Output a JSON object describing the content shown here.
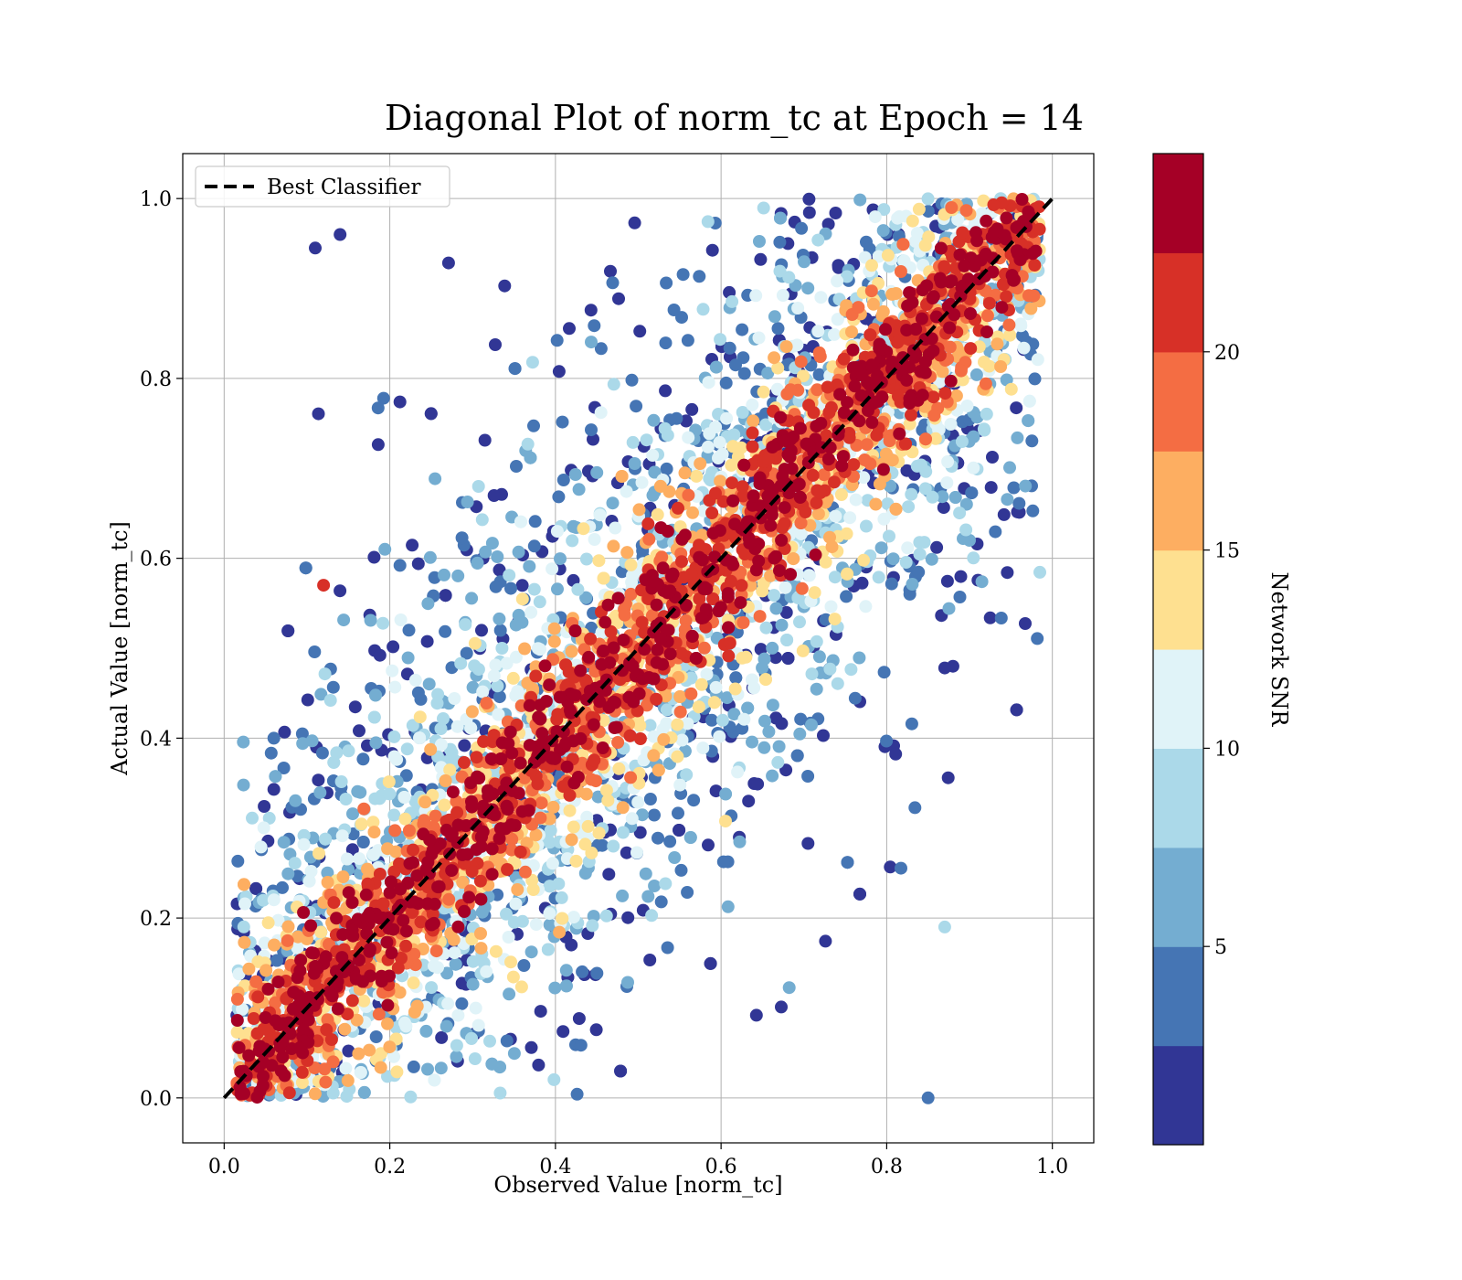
{
  "chart_data": {
    "type": "scatter",
    "title": "Diagonal Plot of norm_tc at Epoch = 14",
    "xlabel": "Observed Value [norm_tc]",
    "ylabel": "Actual Value [norm_tc]",
    "xlim": [
      -0.05,
      1.05
    ],
    "ylim": [
      -0.05,
      1.05
    ],
    "x_ticks": [
      "0.0",
      "0.2",
      "0.4",
      "0.6",
      "0.8",
      "1.0"
    ],
    "y_ticks": [
      "0.0",
      "0.2",
      "0.4",
      "0.6",
      "0.8",
      "1.0"
    ],
    "grid": true,
    "legend": {
      "placement": "top-left",
      "entries": [
        "Best Classifier"
      ]
    },
    "reference_line": {
      "name": "Best Classifier",
      "x": [
        0,
        1
      ],
      "y": [
        0,
        1
      ],
      "style": "dashed",
      "color": "#000000"
    },
    "colorbar": {
      "label": "Network SNR",
      "range": [
        0,
        25
      ],
      "ticks": [
        "5",
        "10",
        "15",
        "20"
      ],
      "tick_values": [
        5,
        10,
        15,
        20
      ],
      "colors": [
        "#313695",
        "#4575b4",
        "#74add1",
        "#abd9e9",
        "#e0f3f8",
        "#fee090",
        "#fdae61",
        "#f46d43",
        "#d73027",
        "#a50026"
      ]
    },
    "series_summary": {
      "high_snr_band_half_width": 0.07,
      "low_snr_spread_max": 0.45,
      "description_points": [
        {
          "x": 0.11,
          "y": 0.945,
          "snr": 1
        },
        {
          "x": 0.14,
          "y": 0.96,
          "snr": 1
        },
        {
          "x": 0.06,
          "y": 0.4,
          "snr": 3
        },
        {
          "x": 0.12,
          "y": 0.57,
          "snr": 21
        },
        {
          "x": 0.85,
          "y": 0.0,
          "snr": 3
        },
        {
          "x": 0.88,
          "y": 0.48,
          "snr": 1
        },
        {
          "x": 0.9,
          "y": 0.62,
          "snr": 5
        },
        {
          "x": 0.87,
          "y": 0.19,
          "snr": 8
        }
      ]
    }
  }
}
